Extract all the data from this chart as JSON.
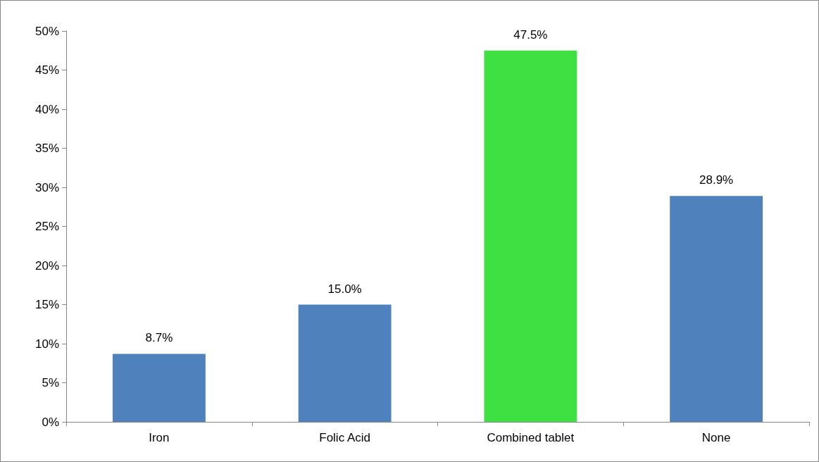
{
  "chart_data": {
    "type": "bar",
    "categories": [
      "Iron",
      "Folic Acid",
      "Combined tablet",
      "None"
    ],
    "values": [
      8.7,
      15.0,
      47.5,
      28.9
    ],
    "colors": [
      "#4f81bd",
      "#4f81bd",
      "#3ee042",
      "#4f81bd"
    ],
    "value_labels": [
      "8.7%",
      "15.0%",
      "47.5%",
      "28.9%"
    ],
    "ylim": [
      0,
      50
    ],
    "yticks": [
      {
        "value": 0,
        "label": "0%"
      },
      {
        "value": 5,
        "label": "5%"
      },
      {
        "value": 10,
        "label": "10%"
      },
      {
        "value": 15,
        "label": "15%"
      },
      {
        "value": 20,
        "label": "20%"
      },
      {
        "value": 25,
        "label": "25%"
      },
      {
        "value": 30,
        "label": "30%"
      },
      {
        "value": 35,
        "label": "35%"
      },
      {
        "value": 40,
        "label": "40%"
      },
      {
        "value": 45,
        "label": "45%"
      },
      {
        "value": 50,
        "label": "50%"
      }
    ],
    "grid": false
  }
}
